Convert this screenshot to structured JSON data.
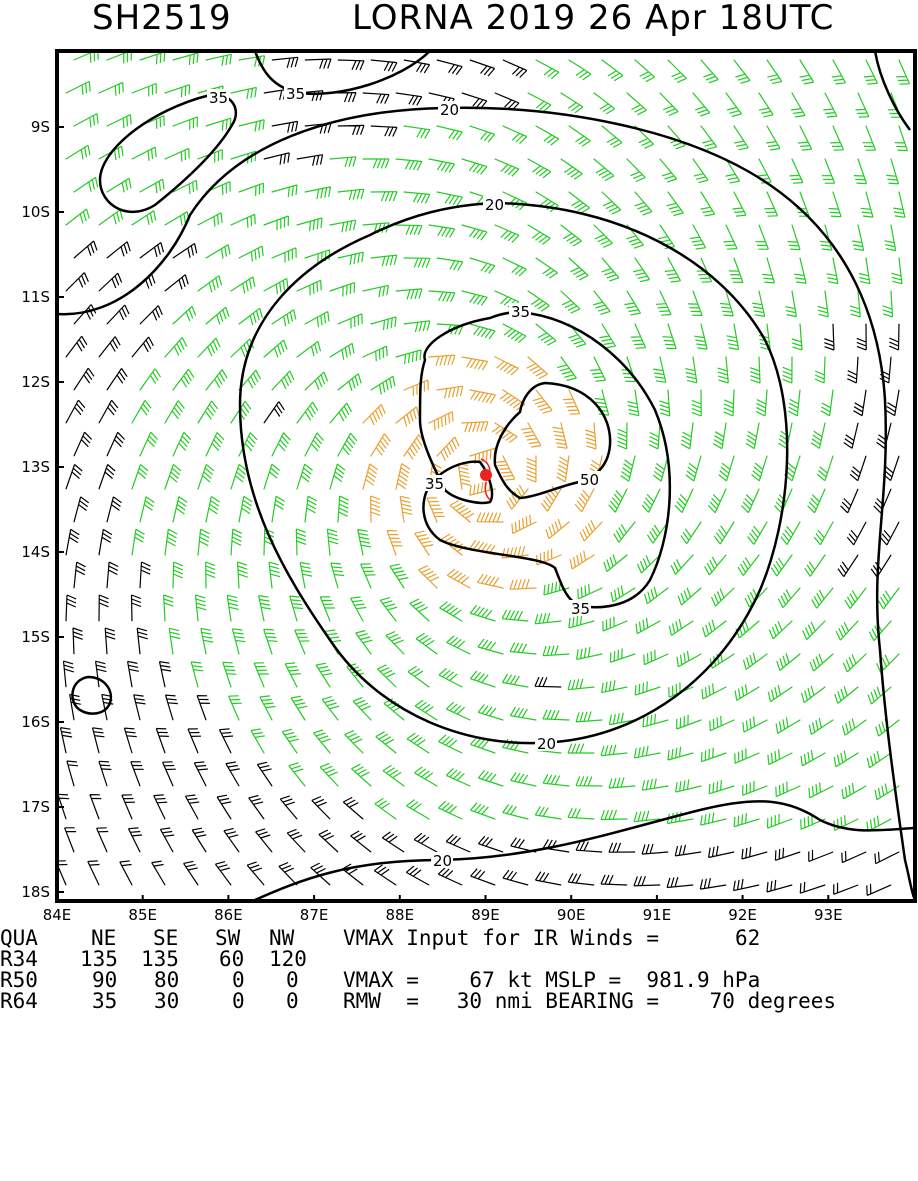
{
  "header": {
    "storm_id": "SH2519",
    "title": "LORNA 2019 26 Apr 18UTC"
  },
  "map": {
    "lon_labels": [
      "84E",
      "85E",
      "86E",
      "87E",
      "88E",
      "89E",
      "90E",
      "91E",
      "92E",
      "93E"
    ],
    "lat_labels": [
      "9S",
      "10S",
      "11S",
      "12S",
      "13S",
      "14S",
      "15S",
      "16S",
      "17S",
      "18S"
    ],
    "center": {
      "lon": 89.0,
      "lat": -13.1
    },
    "contour_labels": [
      "35",
      "35",
      "20",
      "20",
      "35",
      "35",
      "50",
      "35",
      "20",
      "20"
    ],
    "colors": {
      "frame": "#000000",
      "barb_weak": "#000000",
      "barb_34kt": "#22cc22",
      "barb_50kt": "#e8a030",
      "barb_64kt": "#e06020",
      "center": "#ee2222"
    }
  },
  "info": {
    "columns": [
      "QUA",
      "NE",
      "SE",
      "SW",
      "NW"
    ],
    "vmax_input_label": "VMAX Input for IR Winds =",
    "vmax_input_value": "62",
    "rows": [
      {
        "label": "R34",
        "values": [
          "135",
          "135",
          "60",
          "120"
        ]
      },
      {
        "label": "R50",
        "values": [
          "90",
          "80",
          "0",
          "0"
        ]
      },
      {
        "label": "R64",
        "values": [
          "35",
          "30",
          "0",
          "0"
        ]
      }
    ],
    "vmax_line": "VMAX =    67 kt MSLP =  981.9 hPa",
    "rmw_line": "RMW  =   30 nmi BEARING =    70 degrees"
  }
}
